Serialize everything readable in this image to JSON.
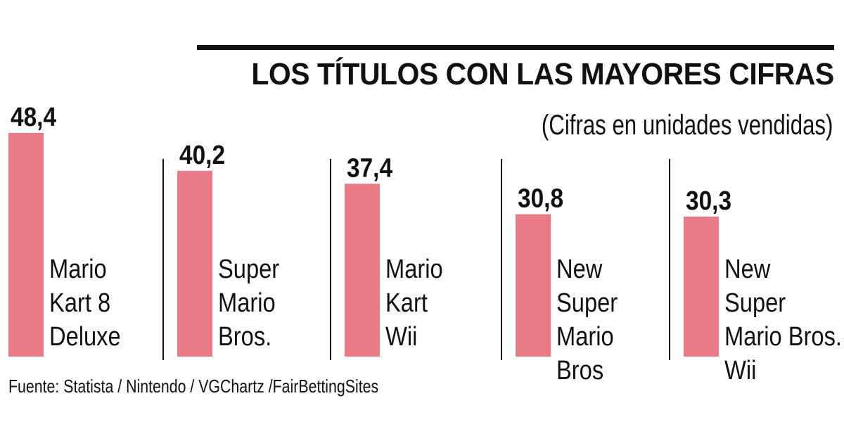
{
  "chart_data": {
    "type": "bar",
    "title": "LOS TÍTULOS CON LAS MAYORES CIFRAS",
    "subtitle": "(Cifras en unidades vendidas)",
    "categories": [
      [
        "Mario",
        "Kart 8",
        "Deluxe"
      ],
      [
        "Super",
        "Mario",
        "Bros."
      ],
      [
        "Mario",
        "Kart",
        "Wii"
      ],
      [
        "New",
        "Super",
        "Mario",
        "Bros"
      ],
      [
        "New",
        "Super",
        "Mario Bros.",
        "Wii"
      ]
    ],
    "values": [
      48.4,
      40.2,
      37.4,
      30.8,
      30.3
    ],
    "value_labels": [
      "48,4",
      "40,2",
      "37,4",
      "30,8",
      "30,3"
    ],
    "ylim": [
      0,
      48.4
    ],
    "xlabel": "",
    "ylabel": "",
    "grid": false,
    "bar_color": "#e87b86"
  },
  "source": "Fuente: Statista / Nintendo / VGChartz /FairBettingSites"
}
